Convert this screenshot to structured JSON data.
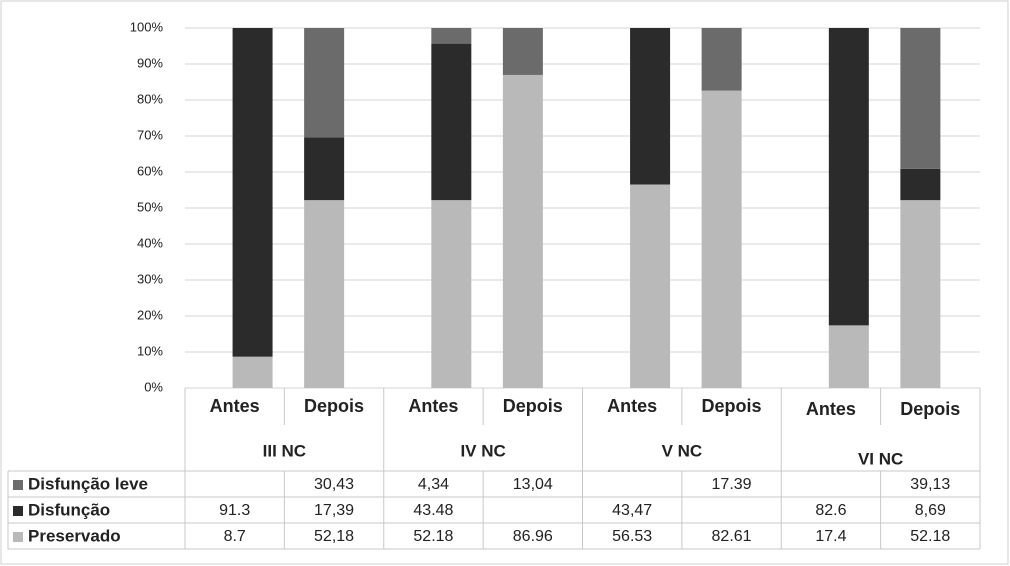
{
  "chart_data": {
    "type": "bar",
    "stacked": true,
    "categories": [
      "Antes",
      "Depois",
      "Antes",
      "Depois",
      "Antes",
      "Depois",
      "Antes",
      "Depois"
    ],
    "groups": [
      "III NC",
      "IV NC",
      "V NC",
      "VI NC"
    ],
    "series": [
      {
        "name": "Disfunção leve",
        "color": "#6b6b6b",
        "values": [
          null,
          30.43,
          4.34,
          13.04,
          null,
          17.39,
          null,
          39.13
        ],
        "value_labels": [
          null,
          "30,43",
          "4,34",
          "13,04",
          null,
          "17.39",
          null,
          "39,13"
        ]
      },
      {
        "name": "Disfunção",
        "color": "#2b2b2b",
        "values": [
          91.3,
          17.39,
          43.48,
          null,
          43.47,
          null,
          82.6,
          8.69
        ],
        "value_labels": [
          "91.3",
          "17,39",
          "43.48",
          null,
          "43,47",
          null,
          "82.6",
          "8,69"
        ]
      },
      {
        "name": "Preservado",
        "color": "#b9b9b9",
        "values": [
          8.7,
          52.18,
          52.18,
          86.96,
          56.53,
          82.61,
          17.4,
          52.18
        ],
        "value_labels": [
          "8.7",
          "52,18",
          "52.18",
          "86.96",
          "56.53",
          "82.61",
          "17.4",
          "52.18"
        ]
      }
    ],
    "ylim": [
      0,
      100
    ],
    "yticks": [
      {
        "value": 0,
        "label": "0%"
      },
      {
        "value": 10,
        "label": "10%"
      },
      {
        "value": 20,
        "label": "20%"
      },
      {
        "value": 30,
        "label": "30%"
      },
      {
        "value": 40,
        "label": "40%"
      },
      {
        "value": 50,
        "label": "50%"
      },
      {
        "value": 60,
        "label": "60%"
      },
      {
        "value": 70,
        "label": "70%"
      },
      {
        "value": 80,
        "label": "80%"
      },
      {
        "value": 90,
        "label": "90%"
      },
      {
        "value": 100,
        "label": "100%"
      }
    ],
    "grid": true
  }
}
